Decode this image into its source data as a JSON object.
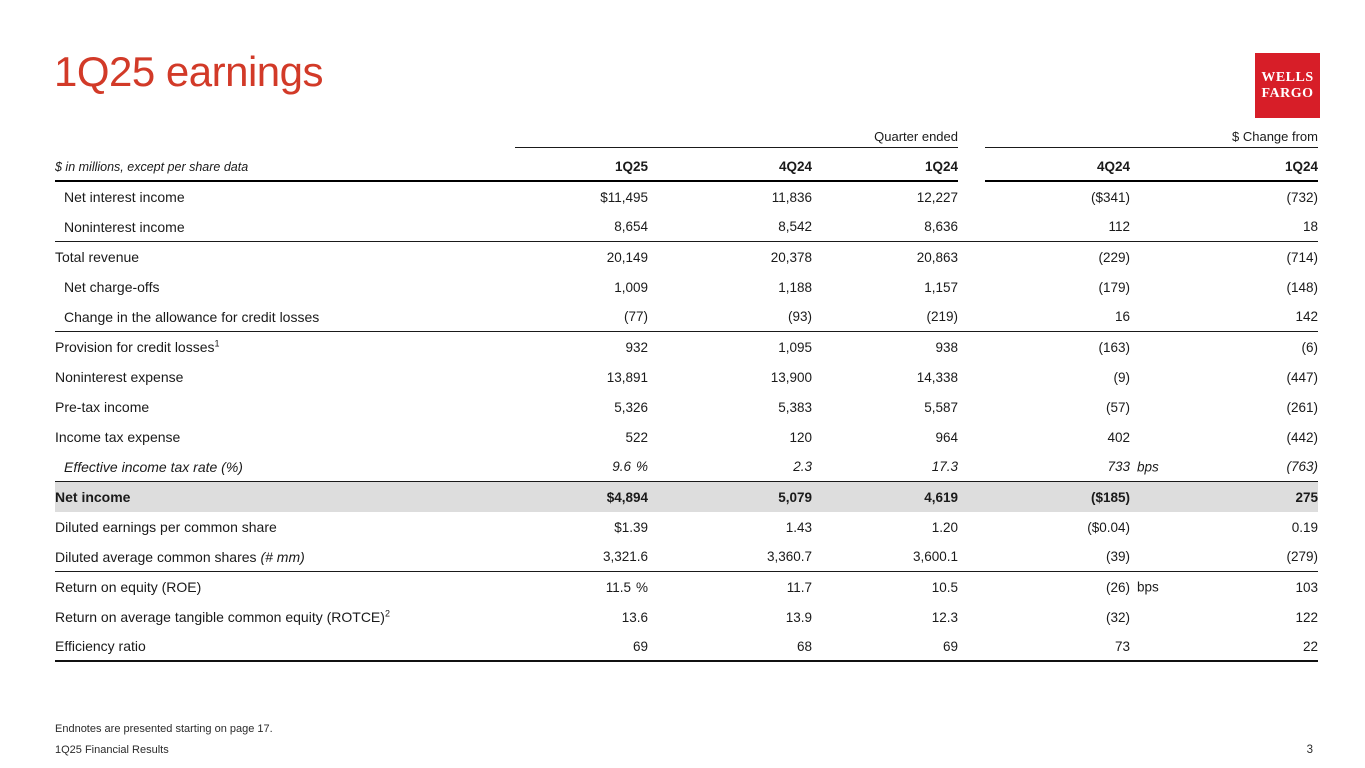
{
  "title": "1Q25 earnings",
  "logo": {
    "line1": "WELLS",
    "line2": "FARGO",
    "bg_color": "#d71e28"
  },
  "colors": {
    "title_red": "#d23a28",
    "logo_red": "#d71e28",
    "shaded_row": "#dddddd"
  },
  "table": {
    "group_headers": {
      "quarter": "Quarter ended",
      "change": "$ Change from"
    },
    "note": "$ in millions, except per share data",
    "columns": [
      "1Q25",
      "4Q24",
      "1Q24",
      "4Q24",
      "1Q24"
    ],
    "rows": [
      {
        "label": "Net interest income",
        "indent": true,
        "values": [
          {
            "v": "$11,495"
          },
          {
            "v": "11,836"
          },
          {
            "v": "12,227"
          },
          {
            "v": "($341)"
          },
          {
            "v": "(732)"
          }
        ]
      },
      {
        "label": "Noninterest income",
        "indent": true,
        "sep": true,
        "values": [
          {
            "v": "8,654"
          },
          {
            "v": "8,542"
          },
          {
            "v": "8,636"
          },
          {
            "v": "112"
          },
          {
            "v": "18"
          }
        ]
      },
      {
        "label": "Total revenue",
        "values": [
          {
            "v": "20,149"
          },
          {
            "v": "20,378"
          },
          {
            "v": "20,863"
          },
          {
            "v": "(229)"
          },
          {
            "v": "(714)"
          }
        ]
      },
      {
        "label": "Net charge-offs",
        "indent": true,
        "values": [
          {
            "v": "1,009"
          },
          {
            "v": "1,188"
          },
          {
            "v": "1,157"
          },
          {
            "v": "(179)"
          },
          {
            "v": "(148)"
          }
        ]
      },
      {
        "label": "Change in the allowance for credit losses",
        "indent": true,
        "sep": true,
        "values": [
          {
            "v": "(77)"
          },
          {
            "v": "(93)"
          },
          {
            "v": "(219)"
          },
          {
            "v": "16"
          },
          {
            "v": "142"
          }
        ]
      },
      {
        "label": "Provision for credit losses",
        "sup": "1",
        "values": [
          {
            "v": "932"
          },
          {
            "v": "1,095"
          },
          {
            "v": "938"
          },
          {
            "v": "(163)"
          },
          {
            "v": "(6)"
          }
        ]
      },
      {
        "label": "Noninterest expense",
        "values": [
          {
            "v": "13,891"
          },
          {
            "v": "13,900"
          },
          {
            "v": "14,338"
          },
          {
            "v": "(9)"
          },
          {
            "v": "(447)"
          }
        ]
      },
      {
        "label": "Pre-tax income",
        "values": [
          {
            "v": "5,326"
          },
          {
            "v": "5,383"
          },
          {
            "v": "5,587"
          },
          {
            "v": "(57)"
          },
          {
            "v": "(261)"
          }
        ]
      },
      {
        "label": "Income tax expense",
        "values": [
          {
            "v": "522"
          },
          {
            "v": "120"
          },
          {
            "v": "964"
          },
          {
            "v": "402"
          },
          {
            "v": "(442)"
          }
        ]
      },
      {
        "label": "Effective income tax rate (%)",
        "indent": true,
        "italic": true,
        "sep": true,
        "values": [
          {
            "v": "9.6",
            "sfx": "%",
            "hang": false
          },
          {
            "v": "2.3"
          },
          {
            "v": "17.3"
          },
          {
            "v": "733",
            "sfx": "bps",
            "hang": true
          },
          {
            "v": "(763)"
          }
        ]
      },
      {
        "label": "Net income",
        "bold": true,
        "shaded": true,
        "values": [
          {
            "v": "$4,894"
          },
          {
            "v": "5,079"
          },
          {
            "v": "4,619"
          },
          {
            "v": "($185)"
          },
          {
            "v": "275"
          }
        ]
      },
      {
        "label": "Diluted earnings per common share",
        "values": [
          {
            "v": "$1.39"
          },
          {
            "v": "1.43"
          },
          {
            "v": "1.20"
          },
          {
            "v": "($0.04)"
          },
          {
            "v": "0.19"
          }
        ]
      },
      {
        "label": "Diluted average common shares ",
        "label2": "(# mm)",
        "sep": true,
        "values": [
          {
            "v": "3,321.6"
          },
          {
            "v": "3,360.7"
          },
          {
            "v": "3,600.1"
          },
          {
            "v": "(39)"
          },
          {
            "v": "(279)"
          }
        ]
      },
      {
        "label": "Return on equity (ROE)",
        "values": [
          {
            "v": "11.5",
            "sfx": "%",
            "hang": false
          },
          {
            "v": "11.7"
          },
          {
            "v": "10.5"
          },
          {
            "v": "(26)",
            "sfx": "bps",
            "hang": true
          },
          {
            "v": "103"
          }
        ]
      },
      {
        "label": "Return on average tangible common equity (ROTCE)",
        "sup": "2",
        "values": [
          {
            "v": "13.6"
          },
          {
            "v": "13.9"
          },
          {
            "v": "12.3"
          },
          {
            "v": "(32)"
          },
          {
            "v": "122"
          }
        ]
      },
      {
        "label": "Efficiency ratio",
        "septhick": true,
        "values": [
          {
            "v": "69"
          },
          {
            "v": "68"
          },
          {
            "v": "69"
          },
          {
            "v": "73"
          },
          {
            "v": "22"
          }
        ]
      }
    ]
  },
  "footer": {
    "endnote": "Endnotes are presented starting on page 17.",
    "left": "1Q25 Financial Results",
    "page": "3"
  }
}
